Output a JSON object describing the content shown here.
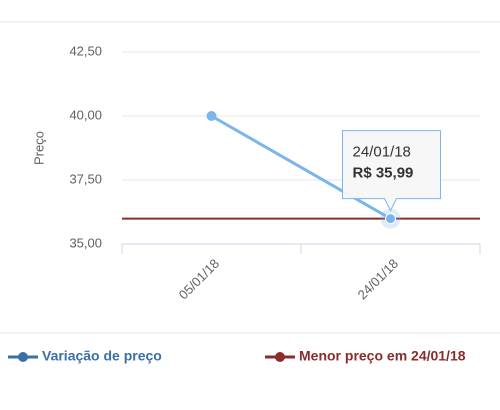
{
  "chart_data": {
    "type": "line",
    "y_label": "Preço",
    "categories": [
      "05/01/18",
      "24/01/18"
    ],
    "series": [
      {
        "name": "Variação de preço",
        "color": "#7cb5ec",
        "legend_color": "#3b6fa6",
        "values": [
          40,
          35.99
        ]
      }
    ],
    "reference_line": {
      "name": "Menor preço em 24/01/18",
      "value": 35.99,
      "color": "#8b2c2c"
    },
    "tooltip": {
      "title": "24/01/18",
      "text": "R$ 35,99"
    },
    "ylim": [
      35,
      43.75
    ],
    "yticks": [
      {
        "value": 35,
        "label": "35,00"
      },
      {
        "value": 37.5,
        "label": "37,50"
      },
      {
        "value": 40,
        "label": "40,00"
      },
      {
        "value": 42.5,
        "label": "42,50"
      }
    ],
    "grid": true
  }
}
